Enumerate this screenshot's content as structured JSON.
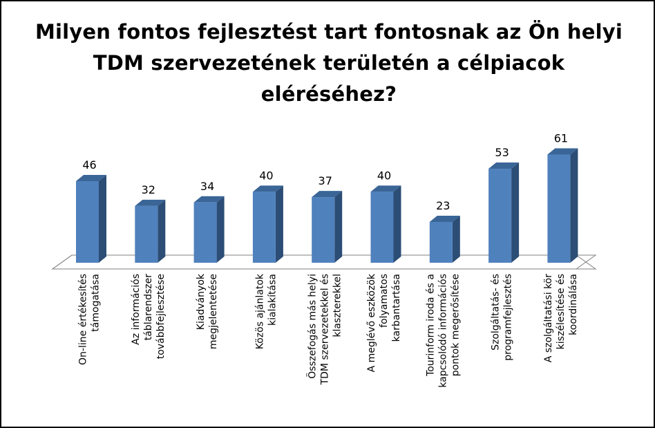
{
  "chart_data": {
    "type": "bar",
    "title": "Milyen fontos fejlesztést tart fontosnak az Ön helyi TDM szervezetének területén a célpiacok eléréséhez?",
    "categories": [
      [
        "On-line értékesítés",
        "támogatása"
      ],
      [
        "Az információs",
        "táblarendszer",
        "továbbfejlesztése"
      ],
      [
        "Kiadványok",
        "megjelentetése"
      ],
      [
        "Közös ajánlatok",
        "kialakítása"
      ],
      [
        "Összefogás más helyi",
        "TDM szervezetekkel és",
        "klaszterekkel"
      ],
      [
        "A meglévő eszközök",
        "folyamatos",
        "karbantartása"
      ],
      [
        "Tourinform iroda és a",
        "kapcsolódó információs",
        "pontok megerősítése"
      ],
      [
        "Szolgáltatás- és",
        "programfejlesztés"
      ],
      [
        "A szolgáltatási kör",
        "kiszélesítése és",
        "koordinálása"
      ]
    ],
    "values": [
      46,
      32,
      34,
      40,
      37,
      40,
      23,
      53,
      61
    ],
    "ylim": [
      0,
      70
    ],
    "grid": false,
    "legend": "none",
    "colors": {
      "bar_front": "#4f81bd",
      "bar_side": "#2c4d75",
      "bar_top": "#3a6597",
      "floor_stroke": "#7f7f7f"
    }
  }
}
